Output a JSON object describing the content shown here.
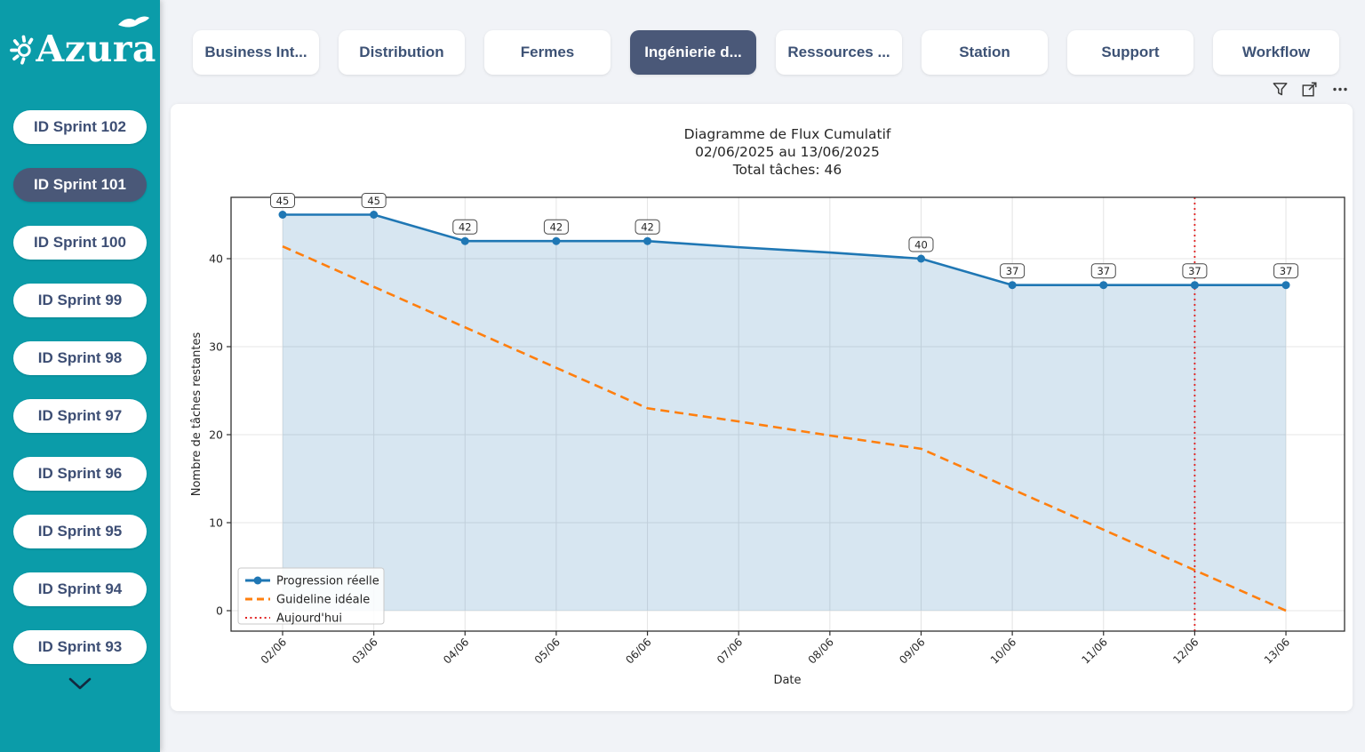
{
  "colors": {
    "sidebar_teal": "#0B9CA9",
    "active_slate": "#4A5878",
    "tab_text": "#3D5275",
    "page_bg": "#F1F3F7",
    "line_blue": "#1F77B4",
    "line_orange": "#FF7F0E",
    "line_red": "#E02020",
    "area_fill": "rgba(31,119,180,0.18)"
  },
  "app": {
    "logo_text": "Azura"
  },
  "sidebar": {
    "items": [
      "ID Sprint 102",
      "ID Sprint 101",
      "ID Sprint 100",
      "ID Sprint 99",
      "ID Sprint 98",
      "ID Sprint 97",
      "ID Sprint 96",
      "ID Sprint 95",
      "ID Sprint 94",
      "ID Sprint 93"
    ],
    "active_index": 1
  },
  "tabs": {
    "items": [
      "Business Int...",
      "Distribution",
      "Fermes",
      "Ingénierie d...",
      "Ressources ...",
      "Station",
      "Support",
      "Workflow"
    ],
    "active_index": 3
  },
  "toolbar": {
    "icons": [
      "filter-icon",
      "focus-mode-icon",
      "more-options-icon"
    ]
  },
  "chart_data": {
    "type": "line",
    "title": "Diagramme de Flux Cumulatif",
    "subtitle": "02/06/2025 au 13/06/2025",
    "total_label": "Total tâches: 46",
    "xlabel": "Date",
    "ylabel": "Nombre de tâches restantes",
    "x": [
      "02/06",
      "03/06",
      "04/06",
      "05/06",
      "06/06",
      "07/06",
      "08/06",
      "09/06",
      "10/06",
      "11/06",
      "12/06",
      "13/06"
    ],
    "yticks": [
      0,
      10,
      20,
      30,
      40
    ],
    "ylim": [
      -2.3,
      47
    ],
    "grid": true,
    "legend_position": "lower-left",
    "series": [
      {
        "name": "Progression réelle",
        "color": "#1F77B4",
        "style": "solid",
        "area_fill": true,
        "values": [
          45,
          45,
          42,
          42,
          42,
          41.3,
          40.7,
          40,
          37,
          37,
          37,
          37
        ],
        "markers": [
          true,
          true,
          true,
          true,
          true,
          false,
          false,
          true,
          true,
          true,
          true,
          true
        ],
        "labels": [
          "45",
          "45",
          "42",
          "42",
          "42",
          null,
          null,
          "40",
          "37",
          "37",
          "37",
          "37"
        ]
      },
      {
        "name": "Guideline idéale",
        "color": "#FF7F0E",
        "style": "dashed",
        "values": [
          41.4,
          36.8,
          32.2,
          27.6,
          23,
          21.5,
          19.9,
          18.4,
          13.8,
          9.2,
          4.6,
          0
        ]
      }
    ],
    "vline": {
      "name": "Aujourd'hui",
      "x": "12/06",
      "color": "#E02020",
      "style": "dotted"
    }
  }
}
